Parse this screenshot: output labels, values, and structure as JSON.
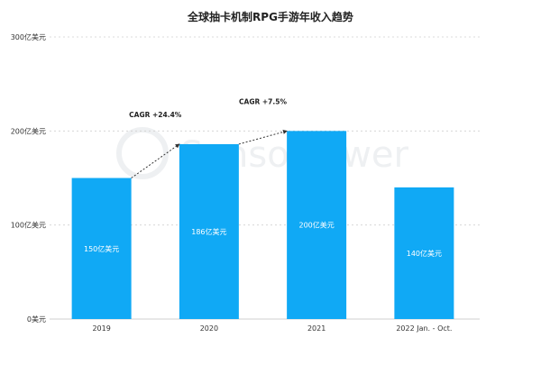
{
  "chart_data": {
    "type": "bar",
    "title": "全球抽卡机制RPG手游年收入趋势",
    "categories": [
      "2019",
      "2020",
      "2021",
      "2022 Jan. - Oct."
    ],
    "values": [
      150,
      186,
      200,
      140
    ],
    "data_labels": [
      "150亿美元",
      "186亿美元",
      "200亿美元",
      "140亿美元"
    ],
    "ylim": [
      0,
      300
    ],
    "yticks": [
      0,
      100,
      200,
      300
    ],
    "ytick_labels": [
      "0美元",
      "100亿美元",
      "200亿美元",
      "300亿美元"
    ],
    "xlabel": "",
    "ylabel": "",
    "grid": true,
    "bar_color": "#10a9f5",
    "annotations": [
      {
        "text": "CAGR +24.4%",
        "from": 0,
        "to": 1
      },
      {
        "text": "CAGR +7.5%",
        "from": 1,
        "to": 2
      }
    ],
    "watermark": "SensorTower"
  }
}
